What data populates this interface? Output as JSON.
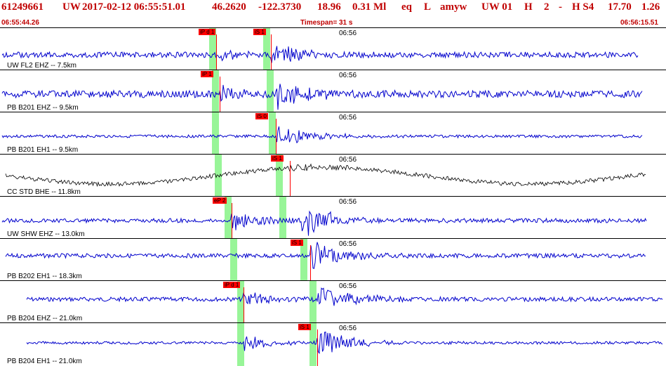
{
  "header": {
    "event_id": "61249661",
    "network": "UW",
    "datetime": "2017-02-12 06:55:51.01",
    "lat": "46.2620",
    "lon": "-122.3730",
    "depth": "18.96",
    "magnitude": "0.31 Ml",
    "etype": "eq",
    "gtype": "L",
    "author": "amyw",
    "source": "UW 01",
    "quality": "H",
    "count": "2",
    "dash": "-",
    "qual2": "H S4",
    "value1": "17.70",
    "value2": "1.26"
  },
  "subheader": {
    "start_time": "06:55:44.26",
    "timespan_label": "Timespan=",
    "timespan_value": "31 s",
    "end_time": "06:56:15.51"
  },
  "colors": {
    "header_text": "#c00000",
    "trace": "#0000cc",
    "trace_bhe": "#000000",
    "pick": "#ff0000",
    "window": "#98f598"
  },
  "panels": [
    {
      "label": "UW FL2 EHZ -- 7.5km",
      "time_tick": "06:56",
      "picks": [
        "iP d 1",
        "iS 1"
      ]
    },
    {
      "label": "PB B201 EHZ -- 9.5km",
      "time_tick": "06:56",
      "picks": [
        "iP 1"
      ]
    },
    {
      "label": "PB B201 EH1 -- 9.5km",
      "time_tick": "06:56",
      "picks": [
        "iS 0"
      ]
    },
    {
      "label": "CC STD BHE -- 11.8km",
      "time_tick": "06:56",
      "picks": [
        "iS 1"
      ]
    },
    {
      "label": "UW SHW EHZ -- 13.0km",
      "time_tick": "06:56",
      "picks": [
        "eP 2"
      ]
    },
    {
      "label": "PB B202 EH1 -- 18.3km",
      "time_tick": "06:56",
      "picks": [
        "iS 1"
      ]
    },
    {
      "label": "PB B204 EHZ -- 21.0km",
      "time_tick": "06:56",
      "picks": [
        "iP d 1"
      ]
    },
    {
      "label": "PB B204 EH1 -- 21.0km",
      "time_tick": "06:56",
      "picks": [
        "iS 1"
      ]
    }
  ]
}
